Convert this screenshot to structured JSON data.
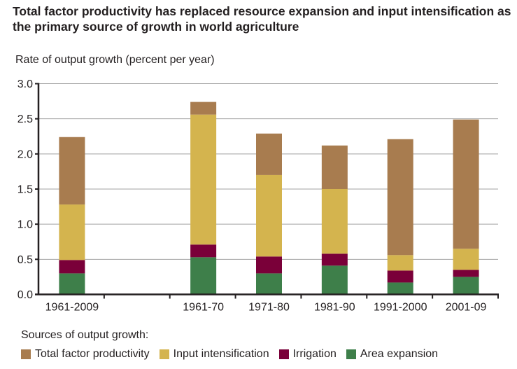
{
  "chart_data": {
    "type": "bar",
    "stacked": true,
    "title": "Total factor productivity has replaced resource expansion and input intensification as the primary source of growth in world agriculture",
    "ylabel": "Rate of output growth (percent per year)",
    "xlabel": "",
    "ylim": [
      0,
      3.0
    ],
    "yticks": [
      "0.0",
      "0.5",
      "1.0",
      "1.5",
      "2.0",
      "2.5",
      "3.0"
    ],
    "grid": true,
    "categories": [
      "1961-2009",
      "1961-70",
      "1971-80",
      "1981-90",
      "1991-2000",
      "2001-09"
    ],
    "series": [
      {
        "name": "Area expansion",
        "color": "#3e7f4a",
        "values": [
          0.3,
          0.53,
          0.3,
          0.41,
          0.17,
          0.25
        ]
      },
      {
        "name": "Irrigation",
        "color": "#7a0039",
        "values": [
          0.19,
          0.18,
          0.24,
          0.17,
          0.17,
          0.1
        ]
      },
      {
        "name": "Input intensification",
        "color": "#d4b44e",
        "values": [
          0.79,
          1.85,
          1.16,
          0.92,
          0.22,
          0.3
        ]
      },
      {
        "name": "Total factor productivity",
        "color": "#a87c4f",
        "values": [
          0.96,
          0.18,
          0.59,
          0.62,
          1.65,
          1.84
        ]
      }
    ],
    "legend_title": "Sources of output growth:",
    "legend_order": [
      "Total factor productivity",
      "Input intensification",
      "Irrigation",
      "Area expansion"
    ],
    "legend_placement": "bottom"
  }
}
